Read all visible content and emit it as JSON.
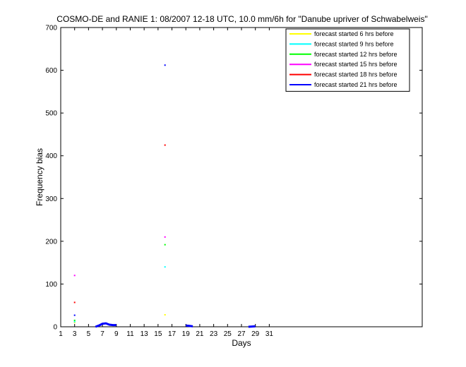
{
  "chart_data": {
    "type": "scatter",
    "title": "COSMO-DE and RANIE 1: 08/2007 12-18 UTC, 10.0 mm/6h for \"Danube upriver of Schwabelweis\"",
    "xlabel": "Days",
    "ylabel": "Frequency bias",
    "xlim": [
      1,
      53
    ],
    "ylim": [
      0,
      700
    ],
    "x_ticks": [
      1,
      3,
      5,
      7,
      9,
      11,
      13,
      15,
      17,
      19,
      21,
      23,
      25,
      27,
      29,
      31
    ],
    "y_ticks": [
      0,
      100,
      200,
      300,
      400,
      500,
      600,
      700
    ],
    "grid": false,
    "legend_position": "top-right",
    "series": [
      {
        "name": "forecast started 6 hrs before",
        "color": "#ffff00",
        "points": [
          [
            3,
            10
          ],
          [
            16,
            28
          ]
        ]
      },
      {
        "name": "forecast started 9 hrs before",
        "color": "#00ffff",
        "points": [
          [
            3,
            12
          ],
          [
            16,
            140
          ]
        ]
      },
      {
        "name": "forecast started 12 hrs before",
        "color": "#00ff00",
        "points": [
          [
            3,
            15
          ],
          [
            16,
            192
          ]
        ]
      },
      {
        "name": "forecast started 15 hrs before",
        "color": "#ff00ff",
        "points": [
          [
            3,
            120
          ],
          [
            16,
            210
          ]
        ]
      },
      {
        "name": "forecast started 18 hrs before",
        "color": "#ff0000",
        "points": [
          [
            3,
            57
          ],
          [
            16,
            425
          ]
        ]
      },
      {
        "name": "forecast started 21 hrs before",
        "color": "#0000ff",
        "points": [
          [
            3,
            27
          ],
          [
            16,
            612
          ]
        ],
        "line_segments": [
          [
            [
              6,
              0
            ],
            [
              6.5,
              3
            ],
            [
              7,
              7
            ],
            [
              7.5,
              8
            ],
            [
              8,
              5
            ],
            [
              8.5,
              4
            ],
            [
              9,
              4
            ]
          ],
          [
            [
              19,
              3
            ],
            [
              19.5,
              2
            ],
            [
              20,
              1
            ]
          ],
          [
            [
              28,
              0
            ],
            [
              29,
              1
            ]
          ]
        ]
      }
    ]
  }
}
